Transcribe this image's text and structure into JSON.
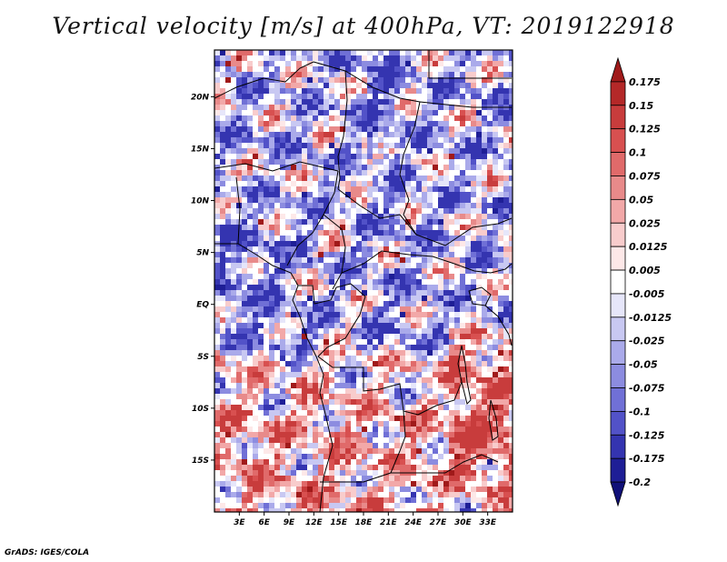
{
  "chart_data": {
    "type": "heatmap",
    "title": "Vertical velocity [m/s] at 400hPa, VT: 2019122918",
    "variable": "Vertical velocity",
    "units": "m/s",
    "level": "400hPa",
    "valid_time": "2019122918",
    "xlabel": "",
    "ylabel": "",
    "lon_range": [
      0,
      36
    ],
    "lat_range": [
      -20,
      24.5
    ],
    "x_ticks": [
      {
        "value": 3,
        "label": "3E"
      },
      {
        "value": 6,
        "label": "6E"
      },
      {
        "value": 9,
        "label": "9E"
      },
      {
        "value": 12,
        "label": "12E"
      },
      {
        "value": 15,
        "label": "15E"
      },
      {
        "value": 18,
        "label": "18E"
      },
      {
        "value": 21,
        "label": "21E"
      },
      {
        "value": 24,
        "label": "24E"
      },
      {
        "value": 27,
        "label": "27E"
      },
      {
        "value": 30,
        "label": "30E"
      },
      {
        "value": 33,
        "label": "33E"
      }
    ],
    "y_ticks": [
      {
        "value": 20,
        "label": "20N"
      },
      {
        "value": 15,
        "label": "15N"
      },
      {
        "value": 10,
        "label": "10N"
      },
      {
        "value": 5,
        "label": "5N"
      },
      {
        "value": 0,
        "label": "EQ"
      },
      {
        "value": -5,
        "label": "5S"
      },
      {
        "value": -10,
        "label": "10S"
      },
      {
        "value": -15,
        "label": "15S"
      }
    ],
    "colorbar": {
      "labels": [
        "0.175",
        "0.15",
        "0.125",
        "0.1",
        "0.075",
        "0.05",
        "0.025",
        "0.0125",
        "0.005",
        "-0.005",
        "-0.0125",
        "-0.025",
        "-0.05",
        "-0.075",
        "-0.1",
        "-0.125",
        "-0.175",
        "-0.2"
      ],
      "colors": [
        "#a01a1a",
        "#b42828",
        "#c83c3c",
        "#d85050",
        "#e06a6a",
        "#e88a8a",
        "#f2a8a8",
        "#f8cccc",
        "#fde8e8",
        "#ffffff",
        "#e6e6fa",
        "#c8c8f2",
        "#aaaaea",
        "#8c8ce0",
        "#7070d6",
        "#5252c8",
        "#3434b0",
        "#1e1e96",
        "#101078"
      ]
    },
    "field_description": "Fine-scale mixed ascent/descent pattern; descent (blue) dominant over north and Atlantic, ascent (red) dominant over southern Africa and near the Great Lakes (around 28-33E, 3-15S)."
  },
  "footer": "GrADS: IGES/COLA"
}
